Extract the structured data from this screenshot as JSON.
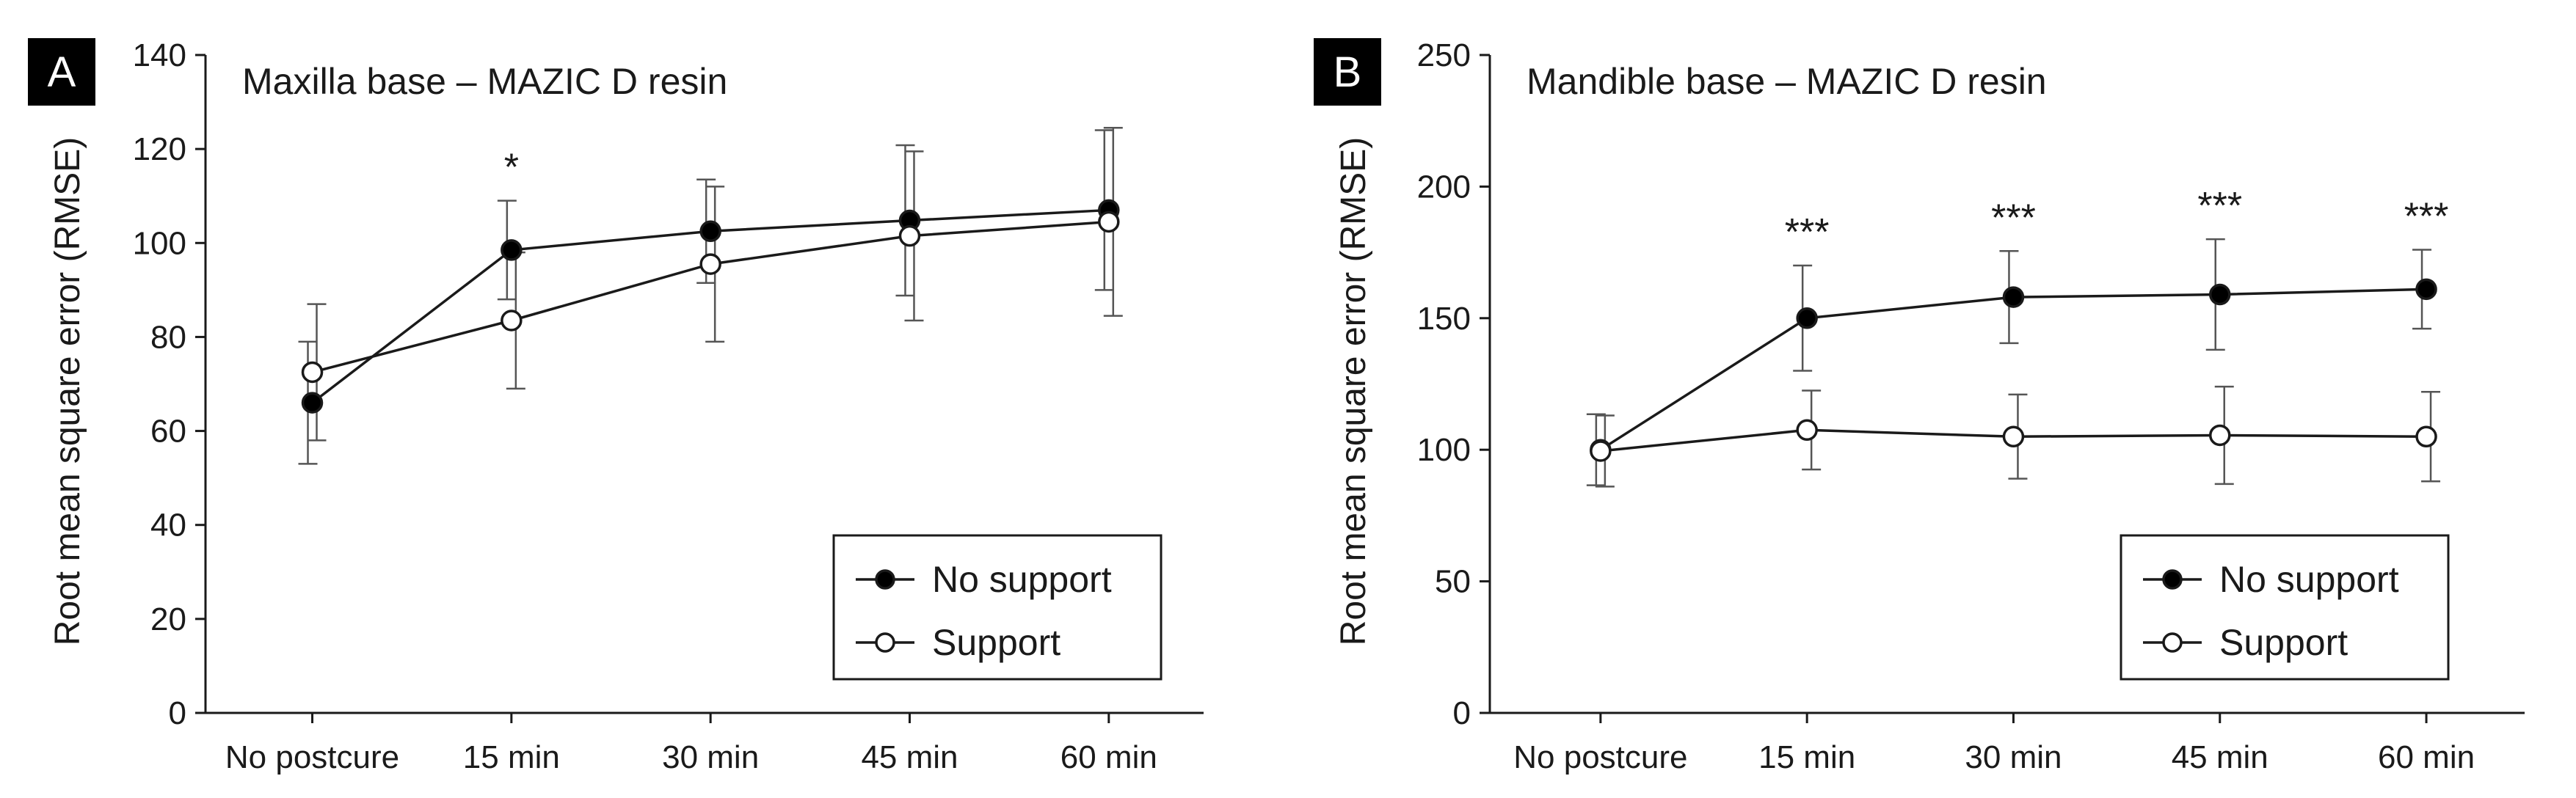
{
  "chart_data": [
    {
      "type": "line",
      "panel_label": "A",
      "title": "Maxilla base – MAZIC D resin",
      "xlabel": "",
      "ylabel": "Root mean square error (RMSE)",
      "categories": [
        "No postcure",
        "15 min",
        "30 min",
        "45 min",
        "60 min"
      ],
      "ylim": [
        0,
        140
      ],
      "yticks": [
        0,
        20,
        40,
        60,
        80,
        100,
        120,
        140
      ],
      "grid": false,
      "legend_position": "bottom-right",
      "series": [
        {
          "name": "No support",
          "marker": "filled-circle",
          "values": [
            66,
            98.5,
            102.5,
            104.8,
            107
          ],
          "error": [
            13,
            10.5,
            11,
            16,
            17
          ]
        },
        {
          "name": "Support",
          "marker": "open-circle",
          "values": [
            72.5,
            83.5,
            95.5,
            101.5,
            104.5
          ],
          "error": [
            14.5,
            14.5,
            16.5,
            18,
            20
          ]
        }
      ],
      "annotations": [
        {
          "category": "15 min",
          "text": "*"
        }
      ],
      "colors": {
        "no_support": "#000000",
        "support": "#ffffff",
        "lines": "#1a1a1a",
        "error_bars": "#555555"
      }
    },
    {
      "type": "line",
      "panel_label": "B",
      "title": "Mandible base – MAZIC D resin",
      "xlabel": "",
      "ylabel": "Root mean square error (RMSE)",
      "categories": [
        "No postcure",
        "15 min",
        "30 min",
        "45 min",
        "60 min"
      ],
      "ylim": [
        0,
        250
      ],
      "yticks": [
        0,
        50,
        100,
        150,
        200,
        250
      ],
      "grid": false,
      "legend_position": "bottom-right",
      "series": [
        {
          "name": "No support",
          "marker": "filled-circle",
          "values": [
            100,
            150,
            158,
            159,
            161
          ],
          "error": [
            13.5,
            20,
            17.5,
            21,
            15
          ]
        },
        {
          "name": "Support",
          "marker": "open-circle",
          "values": [
            99.5,
            107.5,
            105,
            105.5,
            105
          ],
          "error": [
            13.5,
            15,
            16,
            18.5,
            17
          ]
        }
      ],
      "annotations": [
        {
          "category": "15 min",
          "text": "***"
        },
        {
          "category": "30 min",
          "text": "***"
        },
        {
          "category": "45 min",
          "text": "***"
        },
        {
          "category": "60 min",
          "text": "***"
        }
      ],
      "colors": {
        "no_support": "#000000",
        "support": "#ffffff",
        "lines": "#1a1a1a",
        "error_bars": "#555555"
      }
    }
  ]
}
